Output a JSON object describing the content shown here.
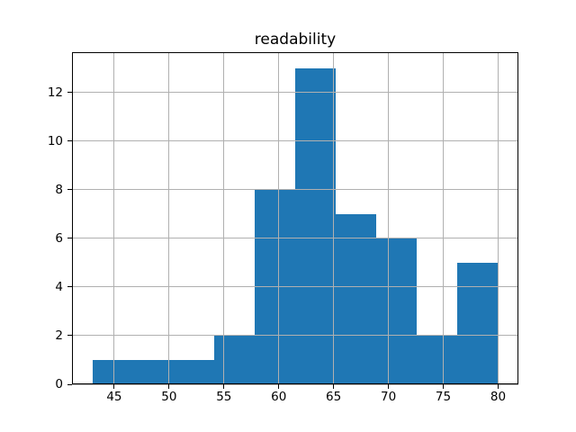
{
  "figure": {
    "background": "#ffffff"
  },
  "chart_data": {
    "type": "bar",
    "subtype": "histogram",
    "title": "readability",
    "xlabel": "",
    "ylabel": "",
    "bin_edges": [
      43.0,
      46.7,
      50.4,
      54.1,
      57.8,
      61.5,
      65.2,
      68.9,
      72.6,
      76.3,
      80.0
    ],
    "counts": [
      1,
      1,
      1,
      2,
      8,
      13,
      7,
      6,
      2,
      5
    ],
    "xlim": [
      41.15,
      81.85
    ],
    "ylim": [
      0,
      13.65
    ],
    "x_ticks": [
      45,
      50,
      55,
      60,
      65,
      70,
      75,
      80
    ],
    "y_ticks": [
      0,
      2,
      4,
      6,
      8,
      10,
      12
    ],
    "grid": true,
    "grid_over_bars": true,
    "legend": "none",
    "bar_color": "#1f77b4",
    "grid_color": "#b0b0b0",
    "spine_color": "#000000",
    "text_color": "#000000"
  }
}
